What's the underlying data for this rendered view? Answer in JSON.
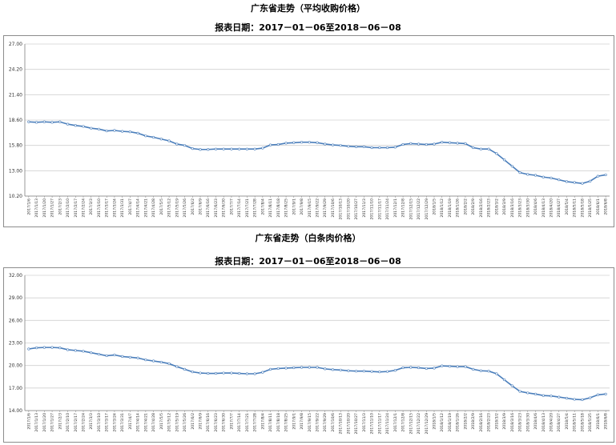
{
  "chart_data": [
    {
      "type": "line",
      "title": "广东省走势（平均收购价格）",
      "subtitle": "报表日期：2017－01－06至2018－06－08",
      "xlabel": "",
      "ylabel": "",
      "ylim": [
        10.2,
        27.0
      ],
      "yticks": [
        "27.00",
        "24.20",
        "21.40",
        "18.60",
        "15.80",
        "13.00",
        "10.20"
      ],
      "grid": true,
      "line_color": "#4a7ebb",
      "x": [
        "2017/1/6",
        "2017/1/13",
        "2017/1/20",
        "2017/1/27",
        "2017/2/3",
        "2017/2/10",
        "2017/2/17",
        "2017/2/24",
        "2017/3/3",
        "2017/3/10",
        "2017/3/17",
        "2017/3/24",
        "2017/3/31",
        "2017/4/7",
        "2017/4/14",
        "2017/4/21",
        "2017/4/28",
        "2017/5/5",
        "2017/5/12",
        "2017/5/19",
        "2017/5/26",
        "2017/6/2",
        "2017/6/9",
        "2017/6/16",
        "2017/6/23",
        "2017/6/30",
        "2017/7/7",
        "2017/7/14",
        "2017/7/21",
        "2017/7/28",
        "2017/8/4",
        "2017/8/11",
        "2017/8/18",
        "2017/8/25",
        "2017/9/1",
        "2017/9/8",
        "2017/9/15",
        "2017/9/22",
        "2017/9/29",
        "2017/10/6",
        "2017/10/13",
        "2017/10/20",
        "2017/10/27",
        "2017/11/3",
        "2017/11/10",
        "2017/11/17",
        "2017/11/24",
        "2017/12/1",
        "2017/12/8",
        "2017/12/15",
        "2017/12/22",
        "2017/12/29",
        "2018/1/5",
        "2018/1/12",
        "2018/1/19",
        "2018/1/26",
        "2018/2/2",
        "2018/2/9",
        "2018/2/16",
        "2018/2/23",
        "2018/3/2",
        "2018/3/9",
        "2018/3/16",
        "2018/3/23",
        "2018/3/30",
        "2018/4/6",
        "2018/4/13",
        "2018/4/20",
        "2018/4/27",
        "2018/5/4",
        "2018/5/11",
        "2018/5/18",
        "2018/5/25",
        "2018/6/1",
        "2018/6/8"
      ],
      "series": [
        {
          "values": [
            18.4,
            18.35,
            18.4,
            18.35,
            18.4,
            18.15,
            18.0,
            17.9,
            17.7,
            17.6,
            17.4,
            17.45,
            17.35,
            17.3,
            17.15,
            16.85,
            16.7,
            16.5,
            16.3,
            15.95,
            15.8,
            15.45,
            15.35,
            15.35,
            15.4,
            15.4,
            15.4,
            15.4,
            15.4,
            15.4,
            15.5,
            15.85,
            15.9,
            16.05,
            16.1,
            16.15,
            16.15,
            16.1,
            15.95,
            15.85,
            15.8,
            15.7,
            15.65,
            15.65,
            15.55,
            15.55,
            15.55,
            15.6,
            15.9,
            16.0,
            15.95,
            15.9,
            15.95,
            16.15,
            16.1,
            16.05,
            16.0,
            15.55,
            15.4,
            15.4,
            14.9,
            14.2,
            13.5,
            12.8,
            12.6,
            12.5,
            12.3,
            12.2,
            12.0,
            11.8,
            11.7,
            11.6,
            11.85,
            12.4,
            12.55
          ]
        }
      ]
    },
    {
      "type": "line",
      "title": "广东省走势（白条肉价格）",
      "subtitle": "报表日期：2017－01－06至2018－06－08",
      "xlabel": "",
      "ylabel": "",
      "ylim": [
        14.0,
        32.0
      ],
      "yticks": [
        "32.00",
        "29.00",
        "26.00",
        "23.00",
        "20.00",
        "17.00",
        "14.00"
      ],
      "grid": true,
      "line_color": "#4a7ebb",
      "x": [
        "2017/1/6",
        "2017/1/13",
        "2017/1/20",
        "2017/1/27",
        "2017/2/3",
        "2017/2/10",
        "2017/2/17",
        "2017/2/24",
        "2017/3/3",
        "2017/3/10",
        "2017/3/17",
        "2017/3/24",
        "2017/3/31",
        "2017/4/7",
        "2017/4/14",
        "2017/4/21",
        "2017/4/28",
        "2017/5/5",
        "2017/5/12",
        "2017/5/19",
        "2017/5/26",
        "2017/6/2",
        "2017/6/9",
        "2017/6/16",
        "2017/6/23",
        "2017/6/30",
        "2017/7/7",
        "2017/7/14",
        "2017/7/21",
        "2017/7/28",
        "2017/8/4",
        "2017/8/11",
        "2017/8/18",
        "2017/8/25",
        "2017/9/1",
        "2017/9/8",
        "2017/9/15",
        "2017/9/22",
        "2017/9/29",
        "2017/10/6",
        "2017/10/13",
        "2017/10/20",
        "2017/10/27",
        "2017/11/3",
        "2017/11/10",
        "2017/11/17",
        "2017/11/24",
        "2017/12/1",
        "2017/12/8",
        "2017/12/15",
        "2017/12/22",
        "2017/12/29",
        "2018/1/5",
        "2018/1/12",
        "2018/1/19",
        "2018/1/26",
        "2018/2/2",
        "2018/2/9",
        "2018/2/16",
        "2018/2/23",
        "2018/3/2",
        "2018/3/9",
        "2018/3/16",
        "2018/3/23",
        "2018/3/30",
        "2018/4/6",
        "2018/4/13",
        "2018/4/20",
        "2018/4/27",
        "2018/5/4",
        "2018/5/11",
        "2018/5/18",
        "2018/5/25",
        "2018/6/1",
        "2018/6/8"
      ],
      "series": [
        {
          "values": [
            22.2,
            22.35,
            22.4,
            22.4,
            22.35,
            22.1,
            22.0,
            21.9,
            21.7,
            21.5,
            21.3,
            21.4,
            21.2,
            21.1,
            21.0,
            20.75,
            20.6,
            20.45,
            20.25,
            19.85,
            19.5,
            19.15,
            19.0,
            18.95,
            18.95,
            19.0,
            19.0,
            18.95,
            18.9,
            18.9,
            19.1,
            19.5,
            19.6,
            19.65,
            19.7,
            19.75,
            19.75,
            19.75,
            19.55,
            19.45,
            19.4,
            19.3,
            19.25,
            19.25,
            19.2,
            19.15,
            19.2,
            19.35,
            19.7,
            19.75,
            19.7,
            19.6,
            19.65,
            19.95,
            19.9,
            19.85,
            19.85,
            19.5,
            19.3,
            19.25,
            18.9,
            18.1,
            17.3,
            16.55,
            16.35,
            16.2,
            16.0,
            15.95,
            15.8,
            15.65,
            15.5,
            15.45,
            15.7,
            16.1,
            16.2
          ]
        }
      ]
    }
  ]
}
